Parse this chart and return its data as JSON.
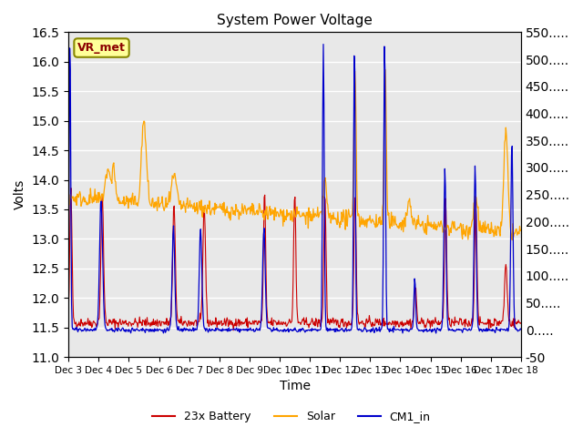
{
  "title": "System Power Voltage",
  "xlabel": "Time",
  "ylabel_left": "Volts",
  "ylim_left": [
    11.0,
    16.5
  ],
  "ylim_right": [
    -50,
    550
  ],
  "yticks_left": [
    11.0,
    11.5,
    12.0,
    12.5,
    13.0,
    13.5,
    14.0,
    14.5,
    15.0,
    15.5,
    16.0,
    16.5
  ],
  "yticks_right": [
    -50,
    0,
    50,
    100,
    150,
    200,
    250,
    300,
    350,
    400,
    450,
    500,
    550
  ],
  "xtick_labels": [
    "Dec 3",
    "Dec 4",
    "Dec 5",
    "Dec 6",
    "Dec 7",
    "Dec 8",
    "Dec 9",
    "Dec 10",
    "Dec 11",
    "Dec 12",
    "Dec 13",
    "Dec 14",
    "Dec 15",
    "Dec 16",
    "Dec 17",
    "Dec 18"
  ],
  "n_days": 15,
  "points_per_day": 48,
  "battery_color": "#cc0000",
  "solar_color": "#ffa500",
  "cm1_color": "#0000cc",
  "legend_labels": [
    "23x Battery",
    "Solar",
    "CM1_in"
  ],
  "annotation_text": "VR_met",
  "annotation_bg": "#ffff99",
  "annotation_border": "#888800",
  "annotation_text_color": "#8b0000",
  "background_color": "#e8e8e8",
  "grid_color": "#ffffff",
  "fig_bg": "#ffffff"
}
